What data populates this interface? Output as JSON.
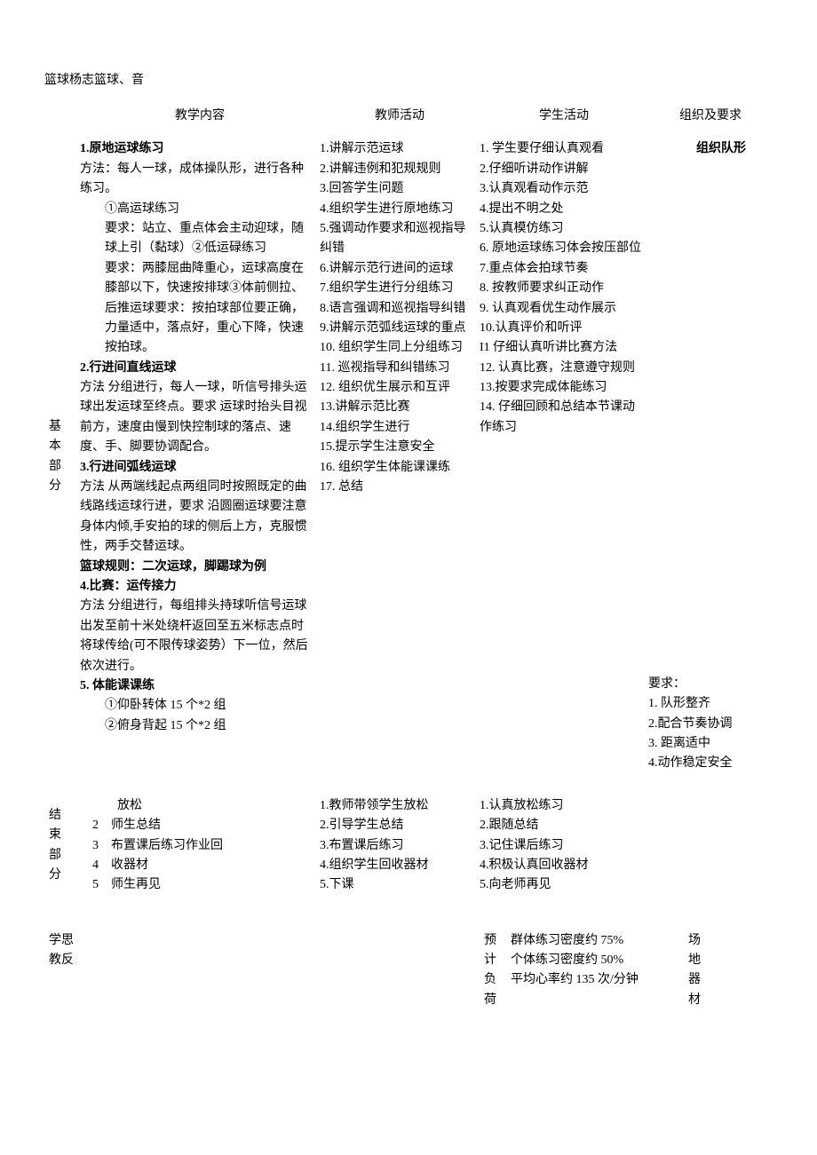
{
  "topTitle": "篮球杨志篮球、音",
  "headers": {
    "content": "教学内容",
    "teacher": "教师活动",
    "student": "学生活动",
    "org": "组织及要求"
  },
  "sectionBasic": {
    "label1": "基",
    "label2": "本",
    "label3": "部",
    "label4": "分"
  },
  "content": {
    "h1": "1.原地运球练习",
    "p1": "方法：每人一球，成体操队形，进行各种练习。",
    "p2": "①高运球练习",
    "p3": "要求：站立、重点体会主动迎球，随球上引（黏球）②低运碌练习",
    "p4": "要求：两膝屈曲降重心，运球高度在膝部以下，快速按排球③体前侧拉、后推运球要求：按拍球部位要正确，力量适中，落点好，重心下降，快速按拍球。",
    "h2": "2.行进间直线运球",
    "p5": "方法 分组进行，每人一球，听信号排头运球出发运球至终点。要求 运球时抬头目视前方，速度由慢到快控制球的落点、速度、手、脚要协调配合。",
    "h3": "3.行进间弧线运球",
    "p6": "方法 从两端线起点两组同时按照既定的曲线路线运球行进，要求 沿圆圈运球要注意身体内倾,手安拍的球的侧后上方，克服惯性，两手交替运球。",
    "h4": "篮球规则：二次运球，脚踢球为例",
    "h5": "4.比赛：运传接力",
    "p7": "方法 分组进行，每组排头持球听信号运球出发至前十米处绕杆返回至五米标志点时将球传给(可不限传球姿势）下一位，然后依次进行。",
    "h6": "5. 体能课课练",
    "p8": "①仰卧转体 15 个*2 组",
    "p9": "②俯身背起 15 个*2 组"
  },
  "teacher": {
    "t1": "1.讲解示范运球",
    "t2": "2.讲解违例和犯规规则",
    "t3": "3.回答学生问题",
    "t4": "4.组织学生进行原地练习",
    "t5": "5.强调动作要求和巡视指导纠错",
    "t6": "6.讲解示范行进间的运球",
    "t7": "7.组织学生进行分组练习",
    "t8": "8.语言强调和巡视指导纠错",
    "t9": "9.讲解示范弧线运球的重点",
    "t10": "10. 组织学生同上分组练习",
    "t11": "11. 巡视指导和纠错练习",
    "t12": "12. 组织优生展示和互评",
    "t13": "13.讲解示范比赛",
    "t14": "14.组织学生进行",
    "t15": "15.提示学生注意安全",
    "t16": "16. 组织学生体能课课练",
    "t17": "17. 总结"
  },
  "student": {
    "s1": "1. 学生要仔细认真观看",
    "s2": "2.仔细听讲动作讲解",
    "s3": "3.认真观看动作示范",
    "s4": "4.提出不明之处",
    "s5": "5.认真模仿练习",
    "s6": "6. 原地运球练习体会按压部位",
    "s7": "7.重点体会拍球节奏",
    "s8": "8. 按教师要求纠正动作",
    "s9": "9. 认真观看优生动作展示",
    "s10": "10.认真评价和听评",
    "s11": "I1 仔细认真听讲比赛方法",
    "s12": "12. 认真比赛，注意遵守规则",
    "s13": "13.按要求完成体能练习",
    "s14": "14. 仔细回顾和总结本节课动作练习"
  },
  "org": {
    "header": "组织队形",
    "req": "要求：",
    "r1": "1. 队形整齐",
    "r2": "2.配合节奏协调",
    "r3": "3. 距离适中",
    "r4": "4.动作稳定安全"
  },
  "sectionEnd": {
    "label1": "结",
    "label2": "束",
    "label3": "部",
    "label4": "分"
  },
  "endContent": {
    "e1": "　　放松",
    "e2": "2　师生总结",
    "e3": "3　布置课后练习作业回",
    "e4": "4　收器材",
    "e5": "5　师生再见"
  },
  "endTeacher": {
    "t1": "1.教师带领学生放松",
    "t2": "2.引导学生总结",
    "t3": "3.布置课后练习",
    "t4": "4.组织学生回收器材",
    "t5": "5.下课"
  },
  "endStudent": {
    "s1": "1.认真放松练习",
    "s2": "2.跟随总结",
    "s3": "3.记住课后练习",
    "s4": "4.积极认真回收器材",
    "s5": "5.向老师再见"
  },
  "bottom": {
    "left1": "学思",
    "left2": "教反",
    "mid2a": "预",
    "mid2b": "计",
    "mid2c": "负",
    "mid2d": "荷",
    "m1": "群体练习密度约 75%",
    "m2": "个体练习密度约 50%",
    "m3": "平均心率约 135 次/分钟",
    "r1": "场",
    "r2": "地",
    "r3": "器",
    "r4": "材"
  }
}
